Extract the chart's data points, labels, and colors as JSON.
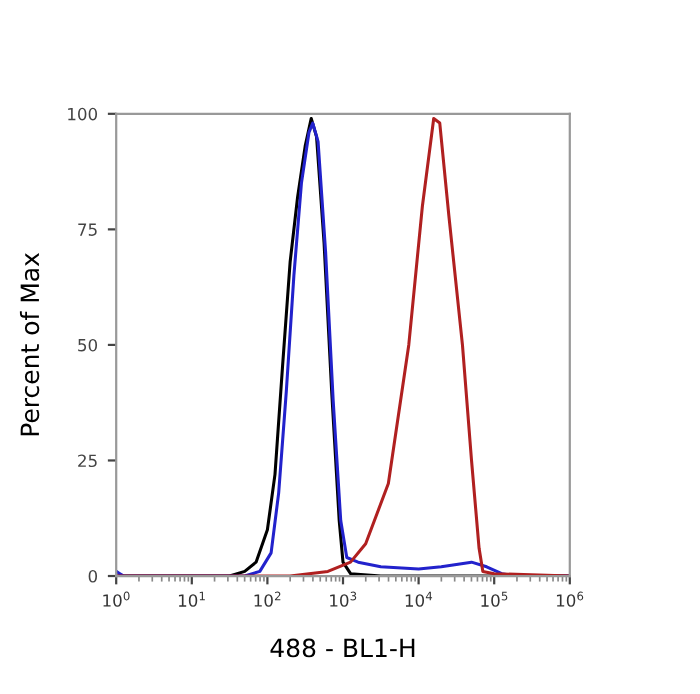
{
  "chart_data": {
    "type": "line",
    "xlabel": "488 - BL1-H",
    "ylabel": "Percent of Max",
    "log": "x",
    "xlim": [
      1,
      1000000
    ],
    "ylim": [
      0,
      100
    ],
    "xticks": [
      {
        "value": 1,
        "label": "10$^{0}$"
      },
      {
        "value": 10,
        "label": "10$^{1}$"
      },
      {
        "value": 100,
        "label": "10$^{2}$"
      },
      {
        "value": 1000,
        "label": "10$^{3}$"
      },
      {
        "value": 10000,
        "label": "10$^{4}$"
      },
      {
        "value": 100000,
        "label": "10$^{5}$"
      },
      {
        "value": 1000000,
        "label": "10$^{6}$"
      }
    ],
    "yticks": [
      0,
      25,
      50,
      75,
      100
    ],
    "grid": false,
    "legend": false,
    "marker": "none",
    "line_style": "solid",
    "series": [
      {
        "color": "#000000",
        "x": [
          1,
          31.6,
          50.1,
          70.8,
          100,
          126,
          158,
          200,
          251,
          316,
          380,
          447,
          562,
          708,
          891,
          1000,
          1259,
          3162,
          1000000
        ],
        "values": [
          0,
          0,
          1,
          3,
          10,
          22,
          45,
          68,
          82,
          93,
          99,
          95,
          72,
          40,
          12,
          3,
          0.5,
          0,
          0
        ]
      },
      {
        "color": "#2222cc",
        "x": [
          1,
          1.12,
          1.26,
          50.1,
          79.4,
          112,
          141,
          178,
          224,
          282,
          355,
          398,
          468,
          589,
          741,
          933,
          1122,
          1585,
          3162,
          10000,
          19950,
          50120,
          79430,
          125900,
          199500,
          1000000
        ],
        "values": [
          1,
          0.5,
          0,
          0,
          1,
          5,
          18,
          40,
          65,
          85,
          96,
          98,
          94,
          70,
          38,
          12,
          4,
          3,
          2,
          1.5,
          2,
          3,
          2,
          0.5,
          0,
          0
        ]
      },
      {
        "color": "#b02020",
        "x": [
          1,
          200,
          631,
          1259,
          1995,
          3981,
          7413,
          11220,
          15850,
          19050,
          25120,
          38020,
          50120,
          63100,
          70790,
          100000,
          1000000
        ],
        "values": [
          0,
          0,
          1,
          3,
          7,
          20,
          50,
          80,
          99,
          98,
          78,
          50,
          25,
          6,
          1,
          0.5,
          0
        ]
      }
    ]
  }
}
